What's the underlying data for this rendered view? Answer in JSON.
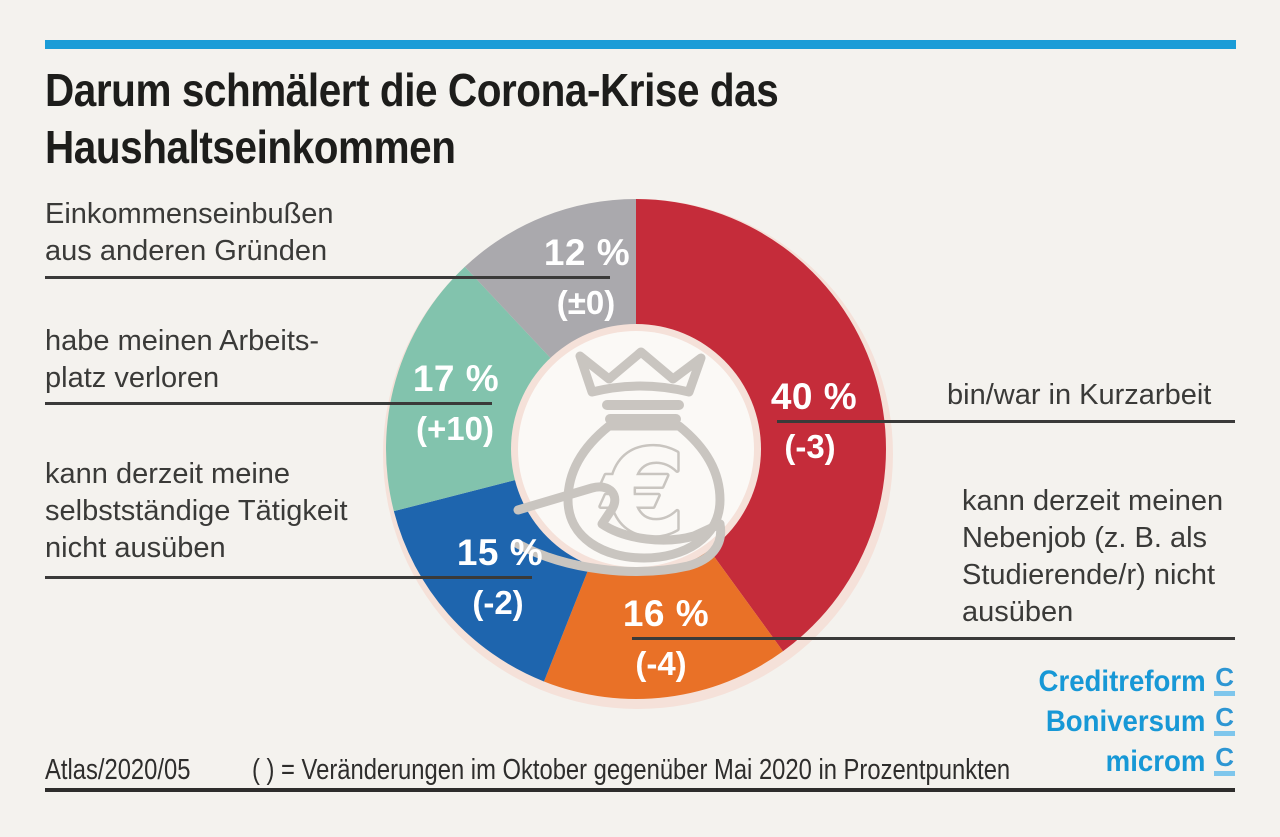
{
  "page": {
    "background": "#f4f2ee"
  },
  "header": {
    "accent_color": "#1b9cd7",
    "title_line1": "Darum schmälert die Corona-Krise das",
    "title_line2": "Haushaltseinkommen"
  },
  "chart_data": {
    "type": "pie",
    "subtype": "donut",
    "title": "Darum schmälert die Corona-Krise das Haushaltseinkommen",
    "unit": "%",
    "start_angle_deg": 0,
    "clockwise": true,
    "center_icon": "money-bag-with-crown-and-euro-on-hand",
    "note": "( ) = Veränderungen im Oktober gegenüber Mai 2020 in Prozentpunkten",
    "segments": [
      {
        "label": "bin/war in Kurzarbeit",
        "value": 40,
        "pct_label": "40 %",
        "change": "(-3)",
        "color": "#c52c3a"
      },
      {
        "label": "kann derzeit meinen Nebenjob (z. B. als Studierende/r) nicht ausüben",
        "value": 16,
        "pct_label": "16 %",
        "change": "(-4)",
        "color": "#e97127"
      },
      {
        "label": "kann derzeit meine selbstständige Tätigkeit nicht ausüben",
        "value": 15,
        "pct_label": "15 %",
        "change": "(-2)",
        "color": "#1e65ae"
      },
      {
        "label": "habe meinen Arbeitsplatz verloren",
        "value": 17,
        "pct_label": "17 %",
        "change": "(+10)",
        "color": "#82c3ad"
      },
      {
        "label": "Einkommenseinbußen aus anderen Gründen",
        "value": 12,
        "pct_label": "12 %",
        "change": "(±0)",
        "color": "#aaa9ad"
      }
    ],
    "halo_color": "#f5e1d9",
    "hole_color": "#fbf9f6",
    "icon_color": "#c9c5c0"
  },
  "annotations": {
    "left": [
      {
        "lines": [
          "Einkommenseinbußen",
          "aus anderen Gründen"
        ]
      },
      {
        "lines": [
          "habe meinen Arbeits-",
          "platz verloren"
        ]
      },
      {
        "lines": [
          "kann derzeit meine",
          "selbstständige Tätigkeit",
          "nicht ausüben"
        ]
      }
    ],
    "right": [
      {
        "lines": [
          "bin/war in Kurzarbeit"
        ]
      },
      {
        "lines": [
          "kann derzeit meinen",
          "Nebenjob (z. B. als",
          "Studierende/r) nicht",
          "ausüben"
        ]
      }
    ]
  },
  "footer": {
    "source": "Atlas/2020/05",
    "legend": "( ) =  Veränderungen im Oktober gegenüber Mai 2020 in Prozentpunkten"
  },
  "logos": {
    "text_color": "#1798d6",
    "mark_c_color": "#2d96d3",
    "mark_bar_color": "#7ec6ec",
    "items": [
      {
        "name": "Creditreform"
      },
      {
        "name": "Boniversum"
      },
      {
        "name": "microm"
      }
    ]
  }
}
